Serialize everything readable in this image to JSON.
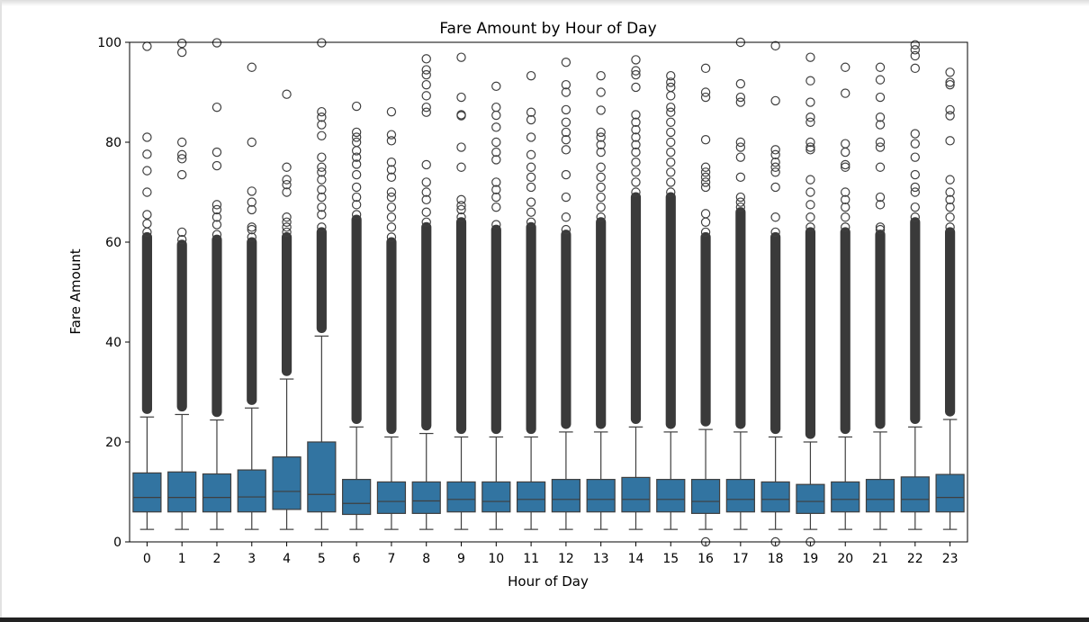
{
  "chart_data": {
    "type": "box",
    "title": "Fare Amount by Hour of Day",
    "xlabel": "Hour of Day",
    "ylabel": "Fare Amount",
    "ylim": [
      0,
      100
    ],
    "yticks": [
      0,
      20,
      40,
      60,
      80,
      100
    ],
    "grid": false,
    "legend": "none",
    "categories": [
      "0",
      "1",
      "2",
      "3",
      "4",
      "5",
      "6",
      "7",
      "8",
      "9",
      "10",
      "11",
      "12",
      "13",
      "14",
      "15",
      "16",
      "17",
      "18",
      "19",
      "20",
      "21",
      "22",
      "23"
    ],
    "box_color": "#3274a1",
    "line_color": "#3f3f3f",
    "boxes": [
      {
        "x": "0",
        "whisker_low": 2.5,
        "q1": 6.0,
        "median": 8.9,
        "q3": 13.8,
        "whisker_high": 25.0
      },
      {
        "x": "1",
        "whisker_low": 2.5,
        "q1": 6.0,
        "median": 8.9,
        "q3": 14.0,
        "whisker_high": 25.5
      },
      {
        "x": "2",
        "whisker_low": 2.5,
        "q1": 6.0,
        "median": 8.9,
        "q3": 13.6,
        "whisker_high": 24.4
      },
      {
        "x": "3",
        "whisker_low": 2.5,
        "q1": 6.0,
        "median": 9.0,
        "q3": 14.4,
        "whisker_high": 26.8
      },
      {
        "x": "4",
        "whisker_low": 2.5,
        "q1": 6.5,
        "median": 10.1,
        "q3": 17.0,
        "whisker_high": 32.6
      },
      {
        "x": "5",
        "whisker_low": 2.5,
        "q1": 6.0,
        "median": 9.5,
        "q3": 20.0,
        "whisker_high": 41.2
      },
      {
        "x": "6",
        "whisker_low": 2.5,
        "q1": 5.5,
        "median": 7.7,
        "q3": 12.5,
        "whisker_high": 23.0
      },
      {
        "x": "7",
        "whisker_low": 2.5,
        "q1": 5.7,
        "median": 8.1,
        "q3": 12.0,
        "whisker_high": 21.0
      },
      {
        "x": "8",
        "whisker_low": 2.5,
        "q1": 5.7,
        "median": 8.2,
        "q3": 12.0,
        "whisker_high": 21.7
      },
      {
        "x": "9",
        "whisker_low": 2.5,
        "q1": 6.0,
        "median": 8.5,
        "q3": 12.0,
        "whisker_high": 21.0
      },
      {
        "x": "10",
        "whisker_low": 2.5,
        "q1": 6.0,
        "median": 8.1,
        "q3": 12.0,
        "whisker_high": 21.0
      },
      {
        "x": "11",
        "whisker_low": 2.5,
        "q1": 6.0,
        "median": 8.5,
        "q3": 12.0,
        "whisker_high": 21.0
      },
      {
        "x": "12",
        "whisker_low": 2.5,
        "q1": 6.0,
        "median": 8.5,
        "q3": 12.5,
        "whisker_high": 22.0
      },
      {
        "x": "13",
        "whisker_low": 2.5,
        "q1": 6.0,
        "median": 8.5,
        "q3": 12.5,
        "whisker_high": 22.0
      },
      {
        "x": "14",
        "whisker_low": 2.5,
        "q1": 6.0,
        "median": 8.5,
        "q3": 12.9,
        "whisker_high": 23.0
      },
      {
        "x": "15",
        "whisker_low": 2.5,
        "q1": 6.0,
        "median": 8.5,
        "q3": 12.5,
        "whisker_high": 22.0
      },
      {
        "x": "16",
        "whisker_low": 2.5,
        "q1": 5.7,
        "median": 8.1,
        "q3": 12.5,
        "whisker_high": 22.5
      },
      {
        "x": "17",
        "whisker_low": 2.5,
        "q1": 6.0,
        "median": 8.5,
        "q3": 12.5,
        "whisker_high": 22.0
      },
      {
        "x": "18",
        "whisker_low": 2.5,
        "q1": 6.0,
        "median": 8.5,
        "q3": 12.0,
        "whisker_high": 21.0
      },
      {
        "x": "19",
        "whisker_low": 2.5,
        "q1": 5.7,
        "median": 8.1,
        "q3": 11.5,
        "whisker_high": 20.0
      },
      {
        "x": "20",
        "whisker_low": 2.5,
        "q1": 6.0,
        "median": 8.5,
        "q3": 12.0,
        "whisker_high": 21.0
      },
      {
        "x": "21",
        "whisker_low": 2.5,
        "q1": 6.0,
        "median": 8.5,
        "q3": 12.5,
        "whisker_high": 22.0
      },
      {
        "x": "22",
        "whisker_low": 2.5,
        "q1": 6.0,
        "median": 8.5,
        "q3": 13.0,
        "whisker_high": 23.0
      },
      {
        "x": "23",
        "whisker_low": 2.5,
        "q1": 6.0,
        "median": 8.9,
        "q3": 13.5,
        "whisker_high": 24.5
      }
    ],
    "outlier_top": [
      [
        99.2,
        81.0,
        77.6,
        74.3,
        70.0,
        65.5,
        63.7,
        62.0
      ],
      [
        99.8,
        98.0,
        80.0,
        77.5,
        76.7,
        73.5,
        62.0,
        60.5
      ],
      [
        99.9,
        87.0,
        78.0,
        75.3,
        67.5,
        66.5,
        65.0,
        63.5,
        61.5
      ],
      [
        95.0,
        80.0,
        70.2,
        68.0,
        66.5,
        63.0,
        62.5,
        61.0
      ],
      [
        89.6,
        75.0,
        72.5,
        71.5,
        70.0,
        65.0,
        64.0,
        63.0,
        62.0
      ],
      [
        99.9,
        86.1,
        85.0,
        83.5,
        81.3,
        77.0,
        75.0,
        74.0,
        72.5,
        70.5,
        69.0,
        67.0,
        65.5,
        63.0
      ],
      [
        87.2,
        82.0,
        81.0,
        80.0,
        78.3,
        77.0,
        75.6,
        73.5,
        71.0,
        69.0,
        67.5,
        65.5
      ],
      [
        86.1,
        81.5,
        80.3,
        76.0,
        74.5,
        73.0,
        70.0,
        69.0,
        67.0,
        65.0,
        63.0,
        61.0
      ],
      [
        96.7,
        94.5,
        93.5,
        91.5,
        89.3,
        87.0,
        86.0,
        75.5,
        72.0,
        70.0,
        68.5,
        66.0,
        64.0
      ],
      [
        97.0,
        89.0,
        85.5,
        85.3,
        79.0,
        75.0,
        68.5,
        67.3,
        66.5,
        65.0
      ],
      [
        91.2,
        87.0,
        85.4,
        83.0,
        80.0,
        78.0,
        76.5,
        72.0,
        70.5,
        69.0,
        67.0,
        63.5
      ],
      [
        93.3,
        86.0,
        84.5,
        81.0,
        77.5,
        75.0,
        73.0,
        71.0,
        68.0,
        66.0,
        64.0
      ],
      [
        96.0,
        91.5,
        90.0,
        86.5,
        84.0,
        82.0,
        80.5,
        78.5,
        73.5,
        69.0,
        65.0,
        62.5
      ],
      [
        93.3,
        90.0,
        86.4,
        82.0,
        81.0,
        79.5,
        78.0,
        75.0,
        73.0,
        71.0,
        69.0,
        67.0,
        65.0
      ],
      [
        96.5,
        94.3,
        93.5,
        91.0,
        85.5,
        84.0,
        82.5,
        81.0,
        79.5,
        78.0,
        76.0,
        74.0,
        72.0,
        70.0
      ],
      [
        93.3,
        92.0,
        91.0,
        89.3,
        87.0,
        86.0,
        84.0,
        82.0,
        80.0,
        78.0,
        76.0,
        74.0,
        72.0,
        70.0
      ],
      [
        94.8,
        90.0,
        89.0,
        80.5,
        75.0,
        74.0,
        73.0,
        72.0,
        71.0,
        65.7,
        64.0,
        62.0
      ],
      [
        100.0,
        91.7,
        89.0,
        88.0,
        80.0,
        79.0,
        77.0,
        73.0,
        69.0,
        68.0,
        67.0
      ],
      [
        99.3,
        88.3,
        78.5,
        77.5,
        76.0,
        75.0,
        74.0,
        71.0,
        65.0,
        62.0
      ],
      [
        97.0,
        92.3,
        88.0,
        85.0,
        84.0,
        80.0,
        79.0,
        78.5,
        72.5,
        70.0,
        67.5,
        65.0,
        63.0
      ],
      [
        95.0,
        89.8,
        79.7,
        78.0,
        75.5,
        75.0,
        70.0,
        68.5,
        67.0,
        65.0,
        63.0
      ],
      [
        95.0,
        92.5,
        89.0,
        85.0,
        83.5,
        80.0,
        79.0,
        75.0,
        69.0,
        67.5,
        63.0,
        62.5
      ],
      [
        99.5,
        98.5,
        97.3,
        94.8,
        81.7,
        79.7,
        77.0,
        73.5,
        71.0,
        70.0,
        67.0,
        65.0
      ],
      [
        94.0,
        92.0,
        91.5,
        86.5,
        85.3,
        80.3,
        72.5,
        70.0,
        68.5,
        67.0,
        65.0,
        63.0
      ]
    ],
    "outlier_low": {
      "16": [
        0.0
      ],
      "18": [
        0.0
      ],
      "19": [
        0.0
      ]
    }
  }
}
